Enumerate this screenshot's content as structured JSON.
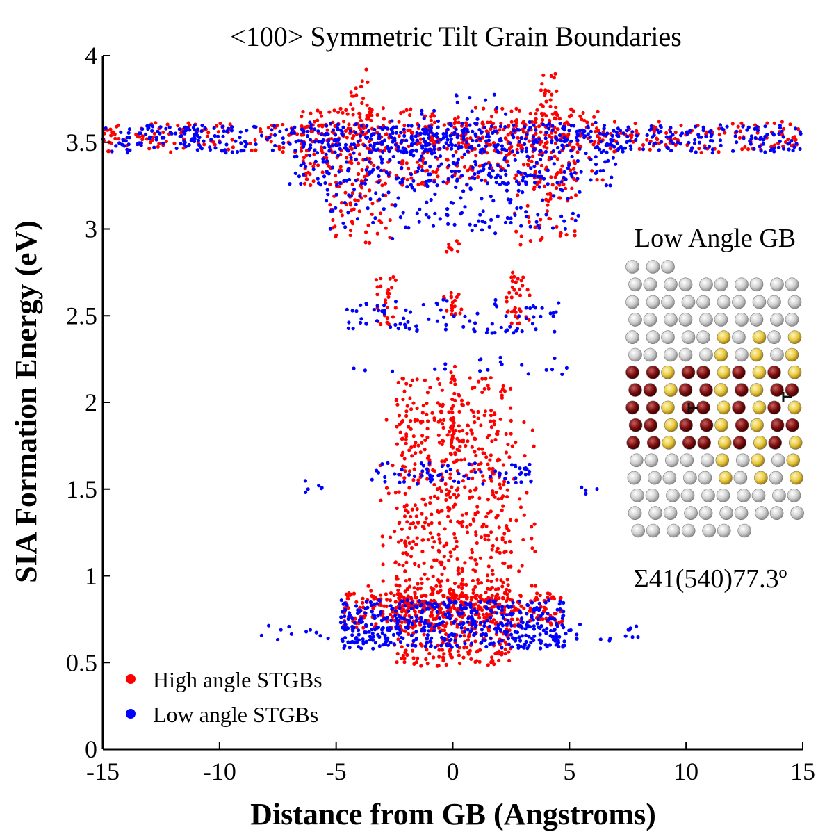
{
  "chart_data": {
    "type": "scatter",
    "title": "<100> Symmetric Tilt Grain Boundaries",
    "xlabel": "Distance from GB (Angstroms)",
    "ylabel": "SIA Formation Energy (eV)",
    "xlim": [
      -15,
      15
    ],
    "ylim": [
      0,
      4
    ],
    "xticks": [
      -15,
      -10,
      -5,
      0,
      5,
      10,
      15
    ],
    "xtick_labels": [
      "-15",
      "-10",
      "-5",
      "0",
      "5",
      "10",
      "15"
    ],
    "yticks": [
      0,
      0.5,
      1,
      1.5,
      2,
      2.5,
      3,
      3.5,
      4
    ],
    "ytick_labels": [
      "0",
      "0.5",
      "1",
      "1.5",
      "2",
      "2.5",
      "3",
      "3.5",
      "4"
    ],
    "grid": false,
    "legend_position": "bottom-left",
    "series": [
      {
        "name": "High angle STGBs",
        "color": "#ff0000",
        "clusters": [
          {
            "x": [
              -15,
              15
            ],
            "y": [
              3.44,
              3.62
            ],
            "count": 420,
            "symmetric": true
          },
          {
            "x": [
              -6.5,
              6.5
            ],
            "y": [
              3.25,
              3.7
            ],
            "count": 360,
            "symmetric": true
          },
          {
            "x": [
              -4.5,
              -3.5
            ],
            "y": [
              3.55,
              3.92
            ],
            "count": 60,
            "symmetric": true
          },
          {
            "x": [
              -5.3,
              -4.2
            ],
            "y": [
              2.95,
              3.4
            ],
            "count": 60,
            "symmetric": true
          },
          {
            "x": [
              -4.2,
              -2.6
            ],
            "y": [
              2.9,
              3.6
            ],
            "count": 90,
            "symmetric": true
          },
          {
            "x": [
              -3.3,
              -2.3
            ],
            "y": [
              2.45,
              2.75
            ],
            "count": 60,
            "symmetric": true
          },
          {
            "x": [
              -0.3,
              0.3
            ],
            "y": [
              2.85,
              2.95
            ],
            "count": 8,
            "symmetric": false
          },
          {
            "x": [
              -0.4,
              0.4
            ],
            "y": [
              2.5,
              2.65
            ],
            "count": 20,
            "symmetric": false
          },
          {
            "x": [
              -0.1,
              0.1
            ],
            "y": [
              1.7,
              2.25
            ],
            "count": 30,
            "symmetric": false
          },
          {
            "x": [
              -2.5,
              2.5
            ],
            "y": [
              0.95,
              2.15
            ],
            "count": 420,
            "symmetric": true
          },
          {
            "x": [
              -3.7,
              3.7
            ],
            "y": [
              0.72,
              1.95
            ],
            "count": 160,
            "symmetric": true
          },
          {
            "x": [
              -4.7,
              4.7
            ],
            "y": [
              0.7,
              0.9
            ],
            "count": 320,
            "symmetric": true
          },
          {
            "x": [
              -2.5,
              2.5
            ],
            "y": [
              0.48,
              0.95
            ],
            "count": 320,
            "symmetric": true
          }
        ]
      },
      {
        "name": "Low angle STGBs",
        "color": "#0000ff",
        "clusters": [
          {
            "x": [
              -15,
              15
            ],
            "y": [
              3.44,
              3.6
            ],
            "count": 520,
            "symmetric": true
          },
          {
            "x": [
              -7,
              7
            ],
            "y": [
              3.25,
              3.62
            ],
            "count": 300,
            "symmetric": true
          },
          {
            "x": [
              -5.5,
              5.5
            ],
            "y": [
              3.0,
              3.35
            ],
            "count": 140,
            "symmetric": true
          },
          {
            "x": [
              -2.8,
              2.8
            ],
            "y": [
              2.9,
              3.8
            ],
            "count": 80,
            "symmetric": true
          },
          {
            "x": [
              -4.6,
              4.6
            ],
            "y": [
              2.4,
              2.6
            ],
            "count": 90,
            "symmetric": true
          },
          {
            "x": [
              -4.9,
              4.9
            ],
            "y": [
              2.15,
              2.27
            ],
            "count": 20,
            "symmetric": true
          },
          {
            "x": [
              -3.5,
              3.5
            ],
            "y": [
              1.53,
              1.65
            ],
            "count": 70,
            "symmetric": true
          },
          {
            "x": [
              -6.6,
              -5.5
            ],
            "y": [
              1.47,
              1.56
            ],
            "count": 10,
            "symmetric": true
          },
          {
            "x": [
              -8.3,
              8.3
            ],
            "y": [
              0.62,
              0.72
            ],
            "count": 60,
            "symmetric": true
          },
          {
            "x": [
              -4.8,
              4.8
            ],
            "y": [
              0.58,
              0.86
            ],
            "count": 480,
            "symmetric": true
          }
        ]
      }
    ],
    "annotations": {
      "inset_title": "Low Angle GB",
      "inset_caption": "Σ41(540)77.3º"
    }
  }
}
